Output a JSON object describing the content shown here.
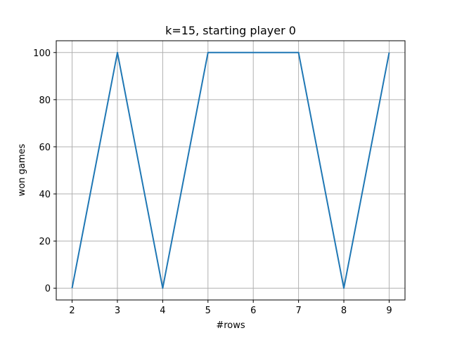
{
  "chart_data": {
    "type": "line",
    "title": "k=15, starting player 0",
    "xlabel": "#rows",
    "ylabel": "won games",
    "x": [
      2,
      3,
      4,
      5,
      6,
      7,
      8,
      9
    ],
    "series": [
      {
        "values": [
          0,
          100,
          0,
          100,
          100,
          100,
          0,
          100
        ],
        "color": "#1f77b4"
      }
    ],
    "xlim": [
      1.65,
      9.35
    ],
    "ylim": [
      -5,
      105
    ],
    "xticks": [
      2,
      3,
      4,
      5,
      6,
      7,
      8,
      9
    ],
    "yticks": [
      0,
      20,
      40,
      60,
      80,
      100
    ],
    "grid": true,
    "grid_color": "#b0b0b0"
  }
}
